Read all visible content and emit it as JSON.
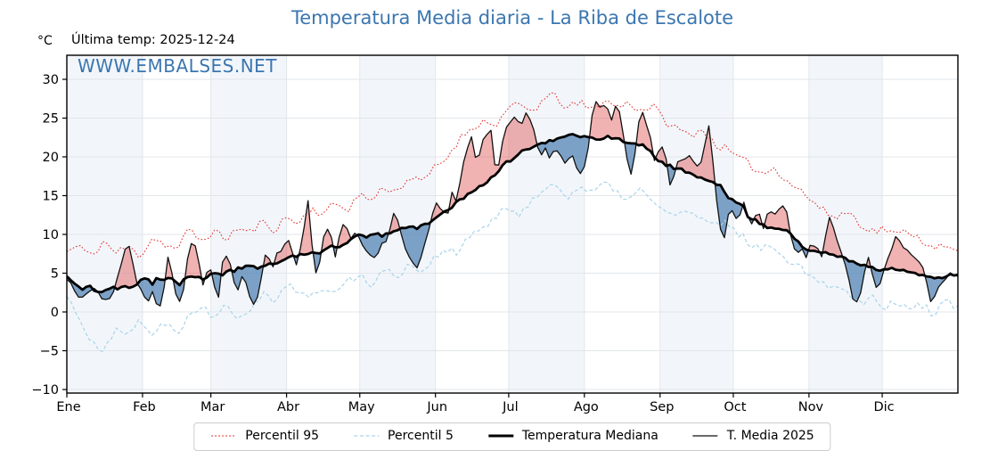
{
  "title": "Temperatura Media diaria - La Riba de Escalote",
  "unit_label": "°C",
  "last_temp_label": "Última temp: 2025-12-24",
  "watermark": "WWW.EMBALSES.NET",
  "colors": {
    "title_blue": "#3b76b0",
    "watermark_blue": "#3b76b0",
    "p95_red": "#e23535",
    "p5_lightblue": "#a9d4e9",
    "median_black": "#000000",
    "t2025_black": "#111111",
    "fill_above_pink": "#e05555",
    "fill_below_blue": "#4d7fb3",
    "month_band": "#f2f6fa",
    "grid": "#e2e6ea",
    "spine": "#000000"
  },
  "legend": {
    "items": [
      {
        "label": "Percentil 95",
        "style": "dotted-red"
      },
      {
        "label": "Percentil 5",
        "style": "dashed-lightblue"
      },
      {
        "label": "Temperatura Mediana",
        "style": "thick-black"
      },
      {
        "label": "T. Media 2025",
        "style": "thin-black"
      }
    ]
  },
  "chart_data": {
    "type": "line",
    "title": "Temperatura Media diaria - La Riba de Escalote",
    "xlabel": "",
    "ylabel": "°C",
    "ylim": [
      -10,
      33
    ],
    "xlim_days": [
      0,
      365
    ],
    "y_ticks": [
      -10,
      -5,
      0,
      5,
      10,
      15,
      20,
      25,
      30
    ],
    "x_tick_days": [
      0,
      31,
      59,
      90,
      120,
      151,
      181,
      212,
      243,
      273,
      304,
      334
    ],
    "x_tick_labels": [
      "Ene",
      "Feb",
      "Mar",
      "Abr",
      "May",
      "Jun",
      "Jul",
      "Ago",
      "Sep",
      "Oct",
      "Nov",
      "Dic"
    ],
    "grid": true,
    "shaded_months_alternating": true,
    "legend_position": "bottom-center",
    "fill_between": {
      "upper": "T. Media 2025",
      "lower": "Temperatura Mediana",
      "above_color": "#e05555",
      "below_color": "#4d7fb3"
    },
    "series": [
      {
        "name": "Percentil 95",
        "x": [
          0,
          5,
          10,
          15,
          20,
          25,
          30,
          35,
          40,
          45,
          50,
          55,
          60,
          65,
          70,
          75,
          80,
          85,
          90,
          95,
          100,
          105,
          110,
          115,
          120,
          125,
          130,
          135,
          140,
          145,
          150,
          155,
          160,
          165,
          170,
          175,
          180,
          185,
          190,
          195,
          200,
          205,
          210,
          215,
          220,
          225,
          230,
          235,
          240,
          245,
          250,
          255,
          260,
          265,
          270,
          275,
          280,
          285,
          290,
          295,
          300,
          305,
          310,
          315,
          320,
          325,
          330,
          335,
          340,
          345,
          350,
          355,
          360,
          365
        ],
        "values": [
          7.8,
          8.6,
          7.0,
          9.2,
          7.6,
          8.4,
          7.2,
          9.6,
          8.8,
          8.0,
          10.6,
          9.2,
          10.4,
          9.4,
          10.8,
          10.2,
          11.6,
          10.6,
          12.2,
          11.4,
          13.4,
          12.6,
          14.0,
          13.2,
          15.2,
          14.4,
          16.2,
          15.4,
          17.4,
          16.6,
          18.4,
          19.6,
          22.0,
          23.6,
          24.6,
          24.0,
          25.8,
          26.8,
          25.8,
          27.2,
          28.0,
          26.2,
          27.0,
          26.0,
          27.4,
          26.4,
          27.0,
          26.0,
          26.6,
          24.6,
          23.6,
          22.8,
          23.6,
          21.8,
          21.0,
          19.8,
          19.0,
          17.8,
          18.6,
          17.0,
          15.8,
          14.4,
          13.0,
          12.2,
          13.0,
          11.4,
          10.4,
          10.8,
          9.8,
          10.6,
          9.2,
          8.6,
          8.2,
          7.9
        ]
      },
      {
        "name": "Percentil 5",
        "x": [
          0,
          5,
          10,
          15,
          20,
          25,
          30,
          35,
          40,
          45,
          50,
          55,
          60,
          65,
          70,
          75,
          80,
          85,
          90,
          95,
          100,
          105,
          110,
          115,
          120,
          125,
          130,
          135,
          140,
          145,
          150,
          155,
          160,
          165,
          170,
          175,
          180,
          185,
          190,
          195,
          200,
          205,
          210,
          215,
          220,
          225,
          230,
          235,
          240,
          245,
          250,
          255,
          260,
          265,
          270,
          275,
          280,
          285,
          290,
          295,
          300,
          305,
          310,
          315,
          320,
          325,
          330,
          335,
          340,
          345,
          350,
          355,
          360,
          365
        ],
        "values": [
          2.0,
          -0.5,
          -4.0,
          -5.4,
          -1.6,
          -2.8,
          -0.8,
          -3.4,
          -1.2,
          -2.6,
          -0.4,
          0.8,
          -0.6,
          1.4,
          -0.8,
          0.6,
          2.4,
          1.6,
          3.6,
          2.6,
          1.8,
          3.2,
          2.4,
          4.0,
          4.8,
          3.6,
          5.4,
          4.6,
          6.2,
          5.2,
          6.8,
          8.2,
          7.4,
          9.8,
          10.8,
          11.8,
          13.4,
          12.6,
          14.4,
          15.6,
          16.4,
          15.0,
          16.2,
          15.2,
          16.6,
          15.4,
          14.6,
          15.8,
          14.0,
          13.2,
          12.4,
          13.0,
          11.8,
          11.0,
          11.6,
          10.2,
          8.8,
          8.0,
          8.6,
          6.8,
          6.0,
          4.6,
          3.8,
          3.2,
          2.6,
          1.2,
          2.2,
          0.6,
          1.4,
          0.2,
          1.0,
          -0.2,
          1.2,
          0.8
        ]
      },
      {
        "name": "Temperatura Mediana",
        "x": [
          0,
          3,
          6,
          9,
          12,
          15,
          18,
          21,
          24,
          26,
          28,
          31,
          33,
          35,
          37,
          39,
          42,
          44,
          46,
          48,
          50,
          52,
          54,
          56,
          58,
          60,
          62,
          64,
          66,
          68,
          70,
          72,
          74,
          76,
          78,
          80,
          82,
          84,
          86,
          88,
          90,
          92,
          94,
          96,
          98,
          99,
          100,
          102,
          104,
          106,
          108,
          110,
          112,
          114,
          116,
          118,
          120,
          122,
          125,
          127,
          129,
          131,
          134,
          136,
          138,
          140,
          143,
          145,
          147,
          150,
          152,
          154,
          156,
          158,
          160,
          162,
          164,
          166,
          168,
          170,
          172,
          174,
          176,
          178,
          180,
          182,
          184,
          186,
          188,
          190,
          192,
          194,
          196,
          198,
          200,
          202,
          205,
          207,
          209,
          211,
          213,
          215,
          217,
          219,
          221,
          223,
          225,
          227,
          229,
          231,
          233,
          235,
          237,
          239,
          241,
          243,
          245,
          247,
          249,
          251,
          253,
          255,
          257,
          259,
          261,
          263,
          265,
          267,
          269,
          271,
          273,
          275,
          277,
          279,
          281,
          283,
          285,
          287,
          289,
          291,
          293,
          295,
          297,
          299,
          301,
          303,
          305,
          307,
          309,
          311,
          312,
          314,
          316,
          318,
          320,
          322,
          324,
          326,
          328,
          330,
          332,
          334,
          336,
          338,
          340,
          342,
          344,
          346,
          348,
          350,
          352,
          354,
          356,
          358,
          360,
          362,
          364,
          365
        ],
        "values": [
          4.6,
          3.6,
          3.0,
          3.4,
          2.6,
          2.4,
          3.2,
          3.0,
          3.2,
          3.0,
          3.4,
          4.6,
          4.2,
          3.6,
          4.4,
          4.0,
          4.4,
          4.0,
          3.4,
          4.2,
          4.4,
          4.6,
          4.4,
          4.0,
          4.6,
          5.2,
          5.0,
          4.8,
          5.4,
          5.2,
          5.6,
          5.4,
          6.0,
          5.8,
          5.6,
          6.0,
          6.2,
          6.4,
          6.2,
          6.6,
          7.0,
          7.2,
          7.0,
          7.4,
          7.2,
          7.4,
          7.6,
          7.4,
          7.8,
          8.0,
          8.4,
          8.2,
          8.6,
          9.0,
          9.2,
          9.6,
          10.0,
          9.6,
          9.8,
          10.0,
          9.8,
          10.2,
          10.4,
          10.6,
          10.8,
          11.0,
          10.8,
          11.2,
          11.4,
          11.8,
          12.2,
          12.6,
          13.2,
          13.6,
          14.2,
          14.6,
          15.0,
          15.4,
          15.8,
          16.4,
          16.8,
          17.4,
          18.0,
          18.6,
          19.2,
          19.6,
          20.2,
          20.6,
          21.0,
          21.2,
          21.4,
          21.6,
          21.8,
          22.0,
          22.2,
          22.4,
          22.8,
          23.0,
          22.8,
          22.6,
          22.4,
          22.6,
          22.4,
          22.2,
          22.6,
          22.4,
          22.6,
          22.2,
          21.8,
          21.6,
          21.8,
          21.6,
          21.2,
          20.6,
          20.0,
          19.4,
          19.0,
          18.8,
          18.6,
          18.4,
          18.2,
          18.0,
          17.6,
          17.4,
          17.2,
          16.8,
          16.6,
          16.4,
          15.8,
          14.8,
          14.4,
          14.0,
          13.6,
          12.4,
          12.0,
          11.6,
          11.2,
          11.0,
          10.8,
          10.8,
          10.6,
          10.4,
          10.0,
          9.2,
          8.6,
          8.0,
          7.8,
          7.8,
          7.6,
          7.6,
          7.6,
          7.4,
          7.2,
          7.0,
          6.6,
          6.4,
          6.2,
          6.0,
          6.0,
          5.8,
          5.4,
          5.2,
          5.6,
          5.8,
          5.4,
          5.4,
          5.2,
          5.0,
          4.8,
          4.8,
          4.6,
          4.6,
          4.4,
          4.4,
          4.6,
          4.8,
          4.8,
          4.8
        ]
      },
      {
        "name": "T. Media 2025",
        "last_date": "2025-12-24",
        "x": [
          0,
          3,
          6,
          9,
          12,
          15,
          18,
          21,
          24,
          26,
          28,
          31,
          33,
          35,
          37,
          39,
          42,
          44,
          46,
          48,
          50,
          52,
          54,
          56,
          58,
          60,
          62,
          64,
          66,
          68,
          70,
          72,
          74,
          76,
          78,
          80,
          82,
          84,
          86,
          88,
          90,
          92,
          94,
          96,
          98,
          99,
          100,
          102,
          104,
          106,
          108,
          110,
          112,
          114,
          116,
          118,
          120,
          122,
          125,
          127,
          129,
          131,
          134,
          136,
          138,
          140,
          143,
          145,
          147,
          150,
          152,
          154,
          156,
          158,
          160,
          162,
          164,
          166,
          168,
          170,
          172,
          174,
          176,
          178,
          180,
          182,
          184,
          186,
          188,
          190,
          192,
          194,
          196,
          198,
          200,
          202,
          205,
          207,
          209,
          211,
          213,
          215,
          217,
          219,
          221,
          223,
          225,
          227,
          229,
          231,
          233,
          235,
          237,
          239,
          241,
          243,
          245,
          247,
          249,
          251,
          253,
          255,
          257,
          259,
          261,
          263,
          265,
          267,
          269,
          271,
          273,
          275,
          277,
          279,
          281,
          283,
          285,
          287,
          289,
          291,
          293,
          295,
          297,
          299,
          301,
          303,
          305,
          307,
          309,
          311,
          312,
          314,
          316,
          318,
          320,
          322,
          324,
          326,
          328,
          330,
          332,
          334,
          336,
          338,
          340,
          342,
          344,
          346,
          348,
          350,
          352,
          354,
          356,
          358,
          360,
          362,
          364,
          365
        ],
        "values": [
          4.2,
          3.0,
          1.6,
          2.6,
          3.2,
          1.2,
          2.0,
          4.4,
          8.0,
          9.0,
          4.0,
          2.6,
          1.0,
          2.8,
          0.4,
          1.4,
          8.0,
          2.4,
          1.2,
          3.0,
          8.6,
          9.4,
          6.6,
          3.2,
          6.4,
          4.0,
          1.4,
          7.2,
          7.6,
          4.4,
          2.6,
          4.6,
          3.0,
          0.8,
          1.6,
          5.0,
          8.4,
          5.2,
          7.4,
          8.0,
          9.6,
          8.2,
          6.2,
          8.8,
          12.0,
          15.0,
          10.0,
          5.2,
          6.4,
          11.4,
          10.0,
          7.0,
          10.6,
          11.6,
          9.0,
          10.4,
          9.2,
          8.0,
          7.4,
          7.0,
          8.8,
          9.4,
          12.6,
          11.8,
          8.6,
          7.0,
          5.6,
          6.8,
          9.4,
          12.8,
          14.2,
          13.0,
          12.2,
          15.8,
          14.0,
          19.0,
          21.0,
          22.6,
          19.0,
          22.0,
          23.0,
          23.6,
          17.0,
          21.5,
          23.6,
          24.4,
          25.2,
          24.0,
          25.6,
          24.6,
          22.6,
          20.0,
          21.0,
          19.4,
          21.2,
          20.2,
          19.0,
          20.6,
          18.4,
          17.6,
          20.0,
          25.0,
          27.4,
          26.2,
          26.8,
          24.6,
          26.6,
          25.4,
          20.4,
          17.4,
          21.0,
          26.4,
          24.6,
          22.4,
          19.0,
          21.4,
          20.6,
          16.2,
          18.0,
          20.0,
          19.6,
          20.4,
          19.0,
          18.4,
          21.0,
          24.2,
          18.0,
          12.0,
          9.2,
          12.4,
          13.6,
          11.2,
          14.6,
          12.4,
          10.8,
          13.4,
          10.6,
          13.0,
          13.2,
          12.6,
          13.6,
          12.8,
          9.0,
          7.6,
          8.4,
          7.0,
          8.8,
          8.4,
          7.0,
          10.0,
          12.4,
          10.6,
          8.6,
          7.2,
          4.6,
          1.6,
          1.2,
          3.4,
          7.4,
          5.0,
          2.8,
          4.4,
          6.6,
          8.0,
          10.6,
          8.4,
          8.0,
          7.4,
          7.0,
          6.4,
          4.0,
          1.4,
          2.2,
          3.8,
          4.4,
          5.2,
          4.6,
          4.6
        ]
      }
    ]
  }
}
